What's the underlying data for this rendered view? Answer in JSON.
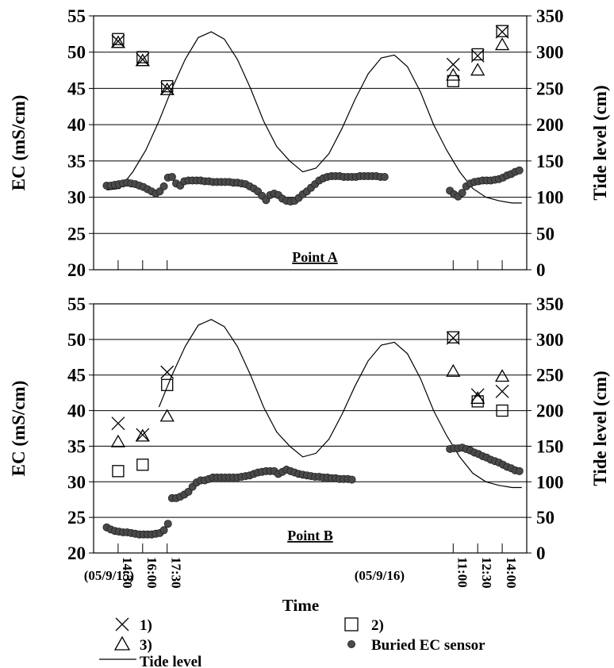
{
  "chart_data": [
    {
      "type": "scatter",
      "title": "Point A",
      "ylabel": "EC (mS/cm)",
      "y2label": "Tide level (cm)",
      "ylim": [
        20,
        55
      ],
      "y2lim": [
        0,
        350
      ],
      "yticks": [
        "20",
        "25",
        "30",
        "35",
        "40",
        "45",
        "50",
        "55"
      ],
      "y2ticks": [
        "0",
        "50",
        "100",
        "150",
        "200",
        "250",
        "300",
        "350"
      ],
      "xlim": [
        13.0,
        39.5
      ],
      "grid": true,
      "sample_markers_x": [
        14.5,
        16.0,
        17.5,
        35.0,
        36.5,
        38.0
      ],
      "series": [
        {
          "name": "1)",
          "marker": "x",
          "x": [
            14.5,
            16.0,
            17.5,
            35.0,
            36.5,
            38.0
          ],
          "y": [
            51.5,
            49.0,
            45.0,
            48.3,
            49.5,
            52.8
          ]
        },
        {
          "name": "2)",
          "marker": "square",
          "x": [
            14.5,
            16.0,
            17.5,
            35.0,
            36.5,
            38.0
          ],
          "y": [
            51.8,
            49.3,
            45.3,
            46.0,
            49.7,
            52.9
          ]
        },
        {
          "name": "3)",
          "marker": "triangle",
          "x": [
            14.5,
            16.0,
            17.5,
            35.0,
            36.5,
            38.0
          ],
          "y": [
            51.3,
            48.8,
            44.8,
            46.8,
            47.5,
            51.0
          ]
        },
        {
          "name": "Buried EC sensor",
          "marker": "circle",
          "x": [
            13.8,
            14.05,
            14.3,
            14.55,
            14.8,
            15.05,
            15.3,
            15.55,
            15.8,
            16.05,
            16.3,
            16.55,
            16.8,
            17.05,
            17.3,
            17.55,
            17.8,
            18.05,
            18.3,
            18.55,
            18.8,
            19.05,
            19.3,
            19.55,
            19.8,
            20.05,
            20.3,
            20.55,
            20.8,
            21.05,
            21.3,
            21.55,
            21.8,
            22.05,
            22.3,
            22.55,
            22.8,
            23.05,
            23.3,
            23.55,
            23.8,
            24.05,
            24.3,
            24.55,
            24.8,
            25.05,
            25.3,
            25.55,
            25.8,
            26.05,
            26.3,
            26.55,
            26.8,
            27.05,
            27.3,
            27.55,
            27.8,
            28.05,
            28.3,
            28.55,
            28.8,
            29.05,
            29.3,
            29.55,
            29.8,
            30.05,
            30.3,
            30.55,
            30.8,
            34.8,
            35.05,
            35.3,
            35.55,
            35.8,
            36.05,
            36.3,
            36.55,
            36.8,
            37.05,
            37.3,
            37.55,
            37.8,
            38.05,
            38.3,
            38.55,
            38.8,
            39.05
          ],
          "y": [
            31.6,
            31.6,
            31.7,
            31.8,
            31.9,
            32.0,
            31.9,
            31.8,
            31.6,
            31.4,
            31.1,
            30.8,
            30.5,
            30.8,
            31.5,
            32.7,
            32.8,
            31.9,
            31.6,
            32.2,
            32.3,
            32.3,
            32.3,
            32.3,
            32.2,
            32.2,
            32.1,
            32.1,
            32.1,
            32.1,
            32.1,
            32.0,
            32.0,
            31.9,
            31.8,
            31.5,
            31.2,
            30.8,
            30.2,
            29.6,
            30.3,
            30.5,
            30.3,
            29.8,
            29.5,
            29.4,
            29.5,
            29.9,
            30.4,
            30.8,
            31.3,
            31.8,
            32.3,
            32.6,
            32.8,
            32.9,
            32.9,
            32.9,
            32.8,
            32.8,
            32.8,
            32.8,
            32.9,
            32.9,
            32.9,
            32.9,
            32.9,
            32.8,
            32.8,
            30.9,
            30.4,
            30.1,
            30.6,
            31.5,
            31.9,
            32.1,
            32.2,
            32.3,
            32.3,
            32.3,
            32.4,
            32.5,
            32.7,
            33.0,
            33.2,
            33.5,
            33.7
          ]
        }
      ],
      "tide": {
        "name": "Tide level",
        "x": [
          13.8,
          14.6,
          15.4,
          16.2,
          17.0,
          17.8,
          18.6,
          19.4,
          20.2,
          21.0,
          21.8,
          22.6,
          23.4,
          24.2,
          25.0,
          25.8,
          26.6,
          27.4,
          28.2,
          29.0,
          29.8,
          30.6,
          31.4,
          32.2,
          33.0,
          33.8,
          34.6,
          35.4,
          36.2,
          37.0,
          37.8,
          38.6,
          39.2
        ],
        "y": [
          110,
          112,
          135,
          165,
          205,
          250,
          290,
          320,
          328,
          318,
          290,
          250,
          205,
          170,
          150,
          135,
          140,
          160,
          195,
          235,
          270,
          292,
          296,
          280,
          245,
          200,
          165,
          135,
          112,
          100,
          95,
          92,
          92
        ]
      }
    },
    {
      "type": "scatter",
      "title": "Point B",
      "ylabel": "EC (mS/cm)",
      "y2label": "Tide level (cm)",
      "xlabel": "Time",
      "ylim": [
        20,
        55
      ],
      "y2lim": [
        0,
        350
      ],
      "yticks": [
        "20",
        "25",
        "30",
        "35",
        "40",
        "45",
        "50",
        "55"
      ],
      "y2ticks": [
        "0",
        "50",
        "100",
        "150",
        "200",
        "250",
        "300",
        "350"
      ],
      "xlim": [
        13.0,
        39.5
      ],
      "grid": true,
      "series": [
        {
          "name": "1)",
          "marker": "x",
          "x": [
            14.5,
            16.0,
            17.5,
            35.0,
            36.5,
            38.0
          ],
          "y": [
            38.2,
            36.6,
            45.4,
            50.2,
            42.2,
            42.7
          ]
        },
        {
          "name": "2)",
          "marker": "square",
          "x": [
            14.5,
            16.0,
            17.5,
            35.0,
            36.5,
            38.0
          ],
          "y": [
            31.5,
            32.4,
            43.6,
            50.3,
            41.3,
            40.0
          ]
        },
        {
          "name": "3)",
          "marker": "triangle",
          "x": [
            14.5,
            16.0,
            17.5,
            35.0,
            36.5,
            38.0
          ],
          "y": [
            35.6,
            36.4,
            39.2,
            45.5,
            41.7,
            44.8
          ]
        },
        {
          "name": "Buried EC sensor",
          "marker": "circle",
          "x": [
            13.8,
            14.05,
            14.3,
            14.55,
            14.8,
            15.05,
            15.3,
            15.55,
            15.8,
            16.05,
            16.3,
            16.55,
            16.8,
            17.05,
            17.3,
            17.55,
            17.8,
            18.05,
            18.3,
            18.55,
            18.8,
            19.05,
            19.3,
            19.55,
            19.8,
            20.05,
            20.3,
            20.55,
            20.8,
            21.05,
            21.3,
            21.55,
            21.8,
            22.05,
            22.3,
            22.55,
            22.8,
            23.05,
            23.3,
            23.55,
            23.8,
            24.05,
            24.3,
            24.55,
            24.8,
            25.05,
            25.3,
            25.55,
            25.8,
            26.05,
            26.3,
            26.55,
            26.8,
            27.05,
            27.3,
            27.55,
            27.8,
            28.05,
            28.3,
            28.55,
            28.8,
            34.8,
            35.05,
            35.3,
            35.55,
            35.8,
            36.05,
            36.3,
            36.55,
            36.8,
            37.05,
            37.3,
            37.55,
            37.8,
            38.05,
            38.3,
            38.55,
            38.8,
            39.05
          ],
          "y": [
            23.6,
            23.3,
            23.1,
            23.0,
            22.9,
            22.9,
            22.8,
            22.7,
            22.6,
            22.6,
            22.6,
            22.6,
            22.7,
            22.8,
            23.2,
            24.1,
            27.7,
            27.7,
            27.9,
            28.2,
            28.6,
            29.3,
            29.9,
            30.2,
            30.2,
            30.4,
            30.6,
            30.6,
            30.6,
            30.6,
            30.6,
            30.6,
            30.6,
            30.7,
            30.8,
            30.9,
            31.1,
            31.3,
            31.4,
            31.5,
            31.5,
            31.5,
            31.1,
            31.4,
            31.7,
            31.5,
            31.3,
            31.1,
            31.0,
            30.9,
            30.8,
            30.7,
            30.7,
            30.6,
            30.6,
            30.5,
            30.5,
            30.4,
            30.4,
            30.4,
            30.3,
            34.6,
            34.7,
            34.7,
            34.8,
            34.6,
            34.4,
            34.1,
            33.9,
            33.6,
            33.4,
            33.1,
            32.9,
            32.7,
            32.4,
            32.1,
            31.9,
            31.6,
            31.5
          ]
        }
      ],
      "tide": {
        "name": "Tide level",
        "x": [
          17.0,
          17.8,
          18.6,
          19.4,
          20.2,
          21.0,
          21.8,
          22.6,
          23.4,
          24.2,
          25.0,
          25.8,
          26.6,
          27.4,
          28.2,
          29.0,
          29.8,
          30.6,
          31.4,
          32.2,
          33.0,
          33.8,
          34.6,
          35.4,
          36.2,
          37.0,
          37.8,
          38.6,
          39.2
        ],
        "y": [
          205,
          250,
          290,
          320,
          328,
          318,
          290,
          250,
          205,
          170,
          150,
          135,
          140,
          160,
          195,
          235,
          270,
          292,
          296,
          280,
          245,
          200,
          165,
          135,
          112,
          100,
          95,
          92,
          92
        ]
      }
    }
  ],
  "x_axis": {
    "date_labels": [
      "(05/9/15)",
      "(05/9/16)"
    ],
    "time_ticks": [
      {
        "x": 14.5,
        "label": "14:30"
      },
      {
        "x": 16.0,
        "label": "16:00"
      },
      {
        "x": 17.5,
        "label": "17:30"
      },
      {
        "x": 35.0,
        "label": "11:00"
      },
      {
        "x": 36.5,
        "label": "12:30"
      },
      {
        "x": 38.0,
        "label": "14:00"
      }
    ],
    "title": "Time"
  },
  "legend": {
    "items": [
      {
        "label": "1)",
        "marker": "x"
      },
      {
        "label": "2)",
        "marker": "square"
      },
      {
        "label": "3)",
        "marker": "triangle"
      },
      {
        "label": "Buried EC sensor",
        "marker": "circle"
      },
      {
        "label": "Tide level",
        "marker": "line"
      }
    ]
  },
  "colors": {
    "marker_fill": "#4a4a4a",
    "ink": "#000000",
    "grid": "#000000"
  }
}
